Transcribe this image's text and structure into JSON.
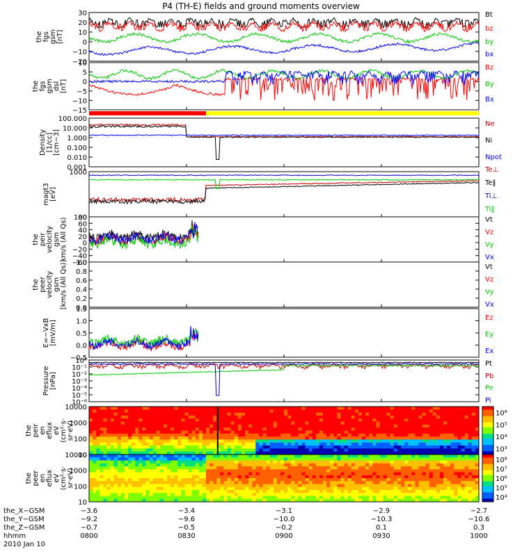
{
  "title": "P4 (TH-E) fields and ground moments overview",
  "chart_data": [
    {
      "name": "fgs",
      "type": "line",
      "ylabel": [
        "the",
        "fgs",
        "gsm",
        "[nT]"
      ],
      "ylim": [
        -20,
        30
      ],
      "yticks": [
        "30",
        "20",
        "10",
        "0",
        "−10",
        "−20"
      ],
      "series": [
        {
          "name": "Bt",
          "color": "#000000"
        },
        {
          "name": "bz",
          "color": "#ff0000"
        },
        {
          "name": "by",
          "color": "#00cc00"
        },
        {
          "name": "bx",
          "color": "#0000ff"
        }
      ]
    },
    {
      "name": "fgs-dsl",
      "type": "line",
      "ylabel": [
        "the",
        "fgs",
        "gsm",
        "dsl",
        "[nT]"
      ],
      "ylim": [
        -15,
        10
      ],
      "yticks": [
        "10",
        "5",
        "0",
        "−5",
        "−10",
        "−15"
      ],
      "series": [
        {
          "name": "Bz",
          "color": "#ff0000"
        },
        {
          "name": "By",
          "color": "#00cc00"
        },
        {
          "name": "Bx",
          "color": "#0000ff"
        }
      ]
    },
    {
      "name": "density",
      "type": "line",
      "log": true,
      "ylabel": [
        "Density",
        "[1/cc]",
        "[cm−3]"
      ],
      "ylim": [
        0.001,
        100
      ],
      "yticks": [
        "100.000",
        "10.000",
        "1.000",
        "0.100",
        "0.010",
        "0.001"
      ],
      "series": [
        {
          "name": "Ne",
          "color": "#cc0000"
        },
        {
          "name": "Ni",
          "color": "#000000"
        },
        {
          "name": "Npot",
          "color": "#0000ff"
        }
      ]
    },
    {
      "name": "temperature",
      "type": "line",
      "log": true,
      "ylabel": [
        "magt3",
        "[eV]"
      ],
      "ylim": [
        10,
        10000
      ],
      "yticks": [
        "1000",
        "100"
      ],
      "series": [
        {
          "name": "Te⊥",
          "color": "#cc0000"
        },
        {
          "name": "Te‖",
          "color": "#000000"
        },
        {
          "name": "Ti⊥",
          "color": "#0000cc"
        },
        {
          "name": "Ti‖",
          "color": "#00cc00"
        }
      ]
    },
    {
      "name": "peir-velocity",
      "type": "line",
      "ylabel": [
        "the",
        "peir",
        "velocity",
        "gsm",
        "km/s (All Qs)"
      ],
      "ylim": [
        -60,
        80
      ],
      "yticks": [
        "80",
        "60",
        "40",
        "20",
        "0",
        "−20",
        "−40",
        "−60"
      ],
      "series": [
        {
          "name": "Vt",
          "color": "#000000"
        },
        {
          "name": "Vz",
          "color": "#ff0000"
        },
        {
          "name": "Vy",
          "color": "#00cc00"
        },
        {
          "name": "Vx",
          "color": "#0000ff"
        }
      ]
    },
    {
      "name": "peer-velocity",
      "type": "line",
      "ylabel": [
        "the",
        "peer",
        "velocity",
        "gsm",
        "[km/s (All Qs)]"
      ],
      "ylim": [
        0,
        1
      ],
      "yticks": [
        "1.0",
        "0.8",
        "0.6",
        "0.4",
        "0.2",
        "0.0"
      ],
      "series": [
        {
          "name": "Vt",
          "color": "#000000"
        },
        {
          "name": "Vz",
          "color": "#ff0000"
        },
        {
          "name": "Vy",
          "color": "#00cc00"
        },
        {
          "name": "Vx",
          "color": "#0000ff"
        }
      ]
    },
    {
      "name": "efield",
      "type": "line",
      "ylabel": [
        "E=−VxB",
        "[mV/m]"
      ],
      "ylim": [
        -0.5,
        1.5
      ],
      "yticks": [
        "1.5",
        "1.0",
        "0.5",
        "0.0",
        "−0.5"
      ],
      "series": [
        {
          "name": "Ez",
          "color": "#ff0000"
        },
        {
          "name": "Ey",
          "color": "#00cc00"
        },
        {
          "name": "Ex",
          "color": "#0000ff"
        }
      ]
    },
    {
      "name": "pressure",
      "type": "line",
      "log": true,
      "ylabel": [
        "Pressure",
        "[nPa]"
      ],
      "ylim": [
        1e-06,
        1
      ],
      "yticks": [
        "10⁰",
        "10⁻¹",
        "10⁻²",
        "10⁻³",
        "10⁻⁴",
        "10⁻⁵",
        "10⁻⁶"
      ],
      "series": [
        {
          "name": "Pt",
          "color": "#000000"
        },
        {
          "name": "Pb",
          "color": "#cc0000"
        },
        {
          "name": "Pe",
          "color": "#00cc00"
        },
        {
          "name": "Pi",
          "color": "#0000cc"
        }
      ]
    },
    {
      "name": "peir-spectrogram",
      "type": "heatmap",
      "ylabel": [
        "the",
        "peir",
        "en",
        "eflux",
        "eV",
        "(cm²·s·",
        "sr·eV)"
      ],
      "ylim": [
        10,
        10000
      ],
      "yticks": [
        "10000",
        "1000",
        "100",
        "10"
      ],
      "colorbar": [
        "10⁶",
        "10⁵",
        "10⁴",
        "10³"
      ]
    },
    {
      "name": "peer-spectrogram",
      "type": "heatmap",
      "ylabel": [
        "the",
        "peer",
        "en",
        "eflux",
        "eV",
        "(cm²·s·",
        "sr·eV)"
      ],
      "ylim": [
        10,
        10000
      ],
      "yticks": [
        "10000",
        "1000",
        "100",
        "10"
      ],
      "colorbar": [
        "10⁸",
        "10⁷",
        "10⁶",
        "10⁵",
        "10⁴"
      ]
    }
  ],
  "footer": {
    "row_labels": [
      "the_X−GSM",
      "the_Y−GSM",
      "the_Z−GSM",
      "hhmm",
      "2010 Jan 10"
    ],
    "columns": [
      [
        "−3.6",
        "−9.2",
        "−0.7",
        "0800"
      ],
      [
        "−3.4",
        "−9.6",
        "−0.5",
        "0830"
      ],
      [
        "−3.1",
        "−10.0",
        "−0.2",
        "0900"
      ],
      [
        "−2.9",
        "−10.3",
        "0.1",
        "0930"
      ],
      [
        "−2.7",
        "−10.6",
        "0.3",
        "1000"
      ]
    ]
  },
  "mode_bar": {
    "colors": [
      "#ff0000",
      "#ffff00"
    ],
    "split_fraction": 0.3
  }
}
